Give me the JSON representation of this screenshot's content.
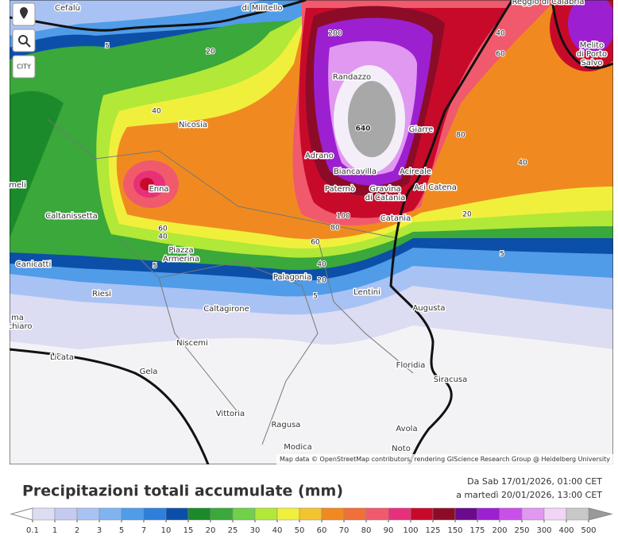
{
  "map": {
    "city_button": "CITY",
    "attribution": "Map data © OpenStreetMap contributors, rendering GIScience Research Group @ Heidelberg University",
    "places": [
      {
        "lines": [
          "Cefalù"
        ]
      },
      {
        "lines": [
          "di Militello"
        ]
      },
      {
        "lines": [
          "Reggio di Calabria"
        ]
      },
      {
        "lines": [
          "Melito",
          "di Porto",
          "Salvo"
        ]
      },
      {
        "lines": [
          "Randazzo"
        ]
      },
      {
        "lines": [
          "Nicosia"
        ]
      },
      {
        "lines": [
          "Giarre"
        ]
      },
      {
        "lines": [
          "Adrano"
        ]
      },
      {
        "lines": [
          "Biancavilla"
        ]
      },
      {
        "lines": [
          "Acireale"
        ]
      },
      {
        "lines": [
          "Aci Catena"
        ]
      },
      {
        "lines": [
          "Gravina",
          "di Catania"
        ]
      },
      {
        "lines": [
          "Paternò"
        ]
      },
      {
        "lines": [
          "Enna"
        ]
      },
      {
        "lines": [
          "meli"
        ]
      },
      {
        "lines": [
          "Catania"
        ]
      },
      {
        "lines": [
          "Caltanissetta"
        ]
      },
      {
        "lines": [
          "Piazza",
          "Armerina"
        ]
      },
      {
        "lines": [
          "Canicatti"
        ]
      },
      {
        "lines": [
          "Palagonia"
        ]
      },
      {
        "lines": [
          "Lentini"
        ]
      },
      {
        "lines": [
          "Riesi"
        ]
      },
      {
        "lines": [
          "Augusta"
        ]
      },
      {
        "lines": [
          "Caltagirone"
        ]
      },
      {
        "lines": [
          "ma",
          "echiaro"
        ]
      },
      {
        "lines": [
          "Niscemi"
        ]
      },
      {
        "lines": [
          "Licata"
        ]
      },
      {
        "lines": [
          "Floridia"
        ]
      },
      {
        "lines": [
          "Gela"
        ]
      },
      {
        "lines": [
          "Siracusa"
        ]
      },
      {
        "lines": [
          "Vittoria"
        ]
      },
      {
        "lines": [
          "Ragusa"
        ]
      },
      {
        "lines": [
          "Avola"
        ]
      },
      {
        "lines": [
          "Noto"
        ]
      },
      {
        "lines": [
          "Modica"
        ]
      }
    ],
    "contour_labels": [
      "5",
      "20",
      "200",
      "40",
      "60",
      "640",
      "80",
      "40",
      "40",
      "20",
      "5",
      "60",
      "40",
      "5",
      "60",
      "80",
      "100",
      "40",
      "20",
      "5"
    ]
  },
  "legend": {
    "title": "Precipitazioni totali accumulate (mm)",
    "period_from": "Da Sab 17/01/2026, 01:00 CET",
    "period_to": "a martedì 20/01/2026, 13:00 CET",
    "ticks": [
      0.1,
      1,
      2,
      3,
      5,
      7,
      10,
      15,
      20,
      25,
      30,
      40,
      50,
      60,
      70,
      80,
      90,
      100,
      125,
      150,
      175,
      200,
      250,
      300,
      400,
      500
    ],
    "colors": [
      "#dcdcf2",
      "#c4cbee",
      "#a9c2f4",
      "#80b3f0",
      "#509ce8",
      "#2e7fdc",
      "#0c4fa8",
      "#1b8a2a",
      "#3aa83a",
      "#70d04a",
      "#b2e838",
      "#f0f03c",
      "#f2c430",
      "#f08a20",
      "#f0703a",
      "#f05a6c",
      "#e8307a",
      "#c80a2a",
      "#8c0c28",
      "#6a0a8c",
      "#9c20d0",
      "#c850e8",
      "#e098f0",
      "#f2d4f6",
      "#c8c8c8"
    ],
    "under_color": "#ffffff",
    "over_color": "#9a9a9a"
  }
}
